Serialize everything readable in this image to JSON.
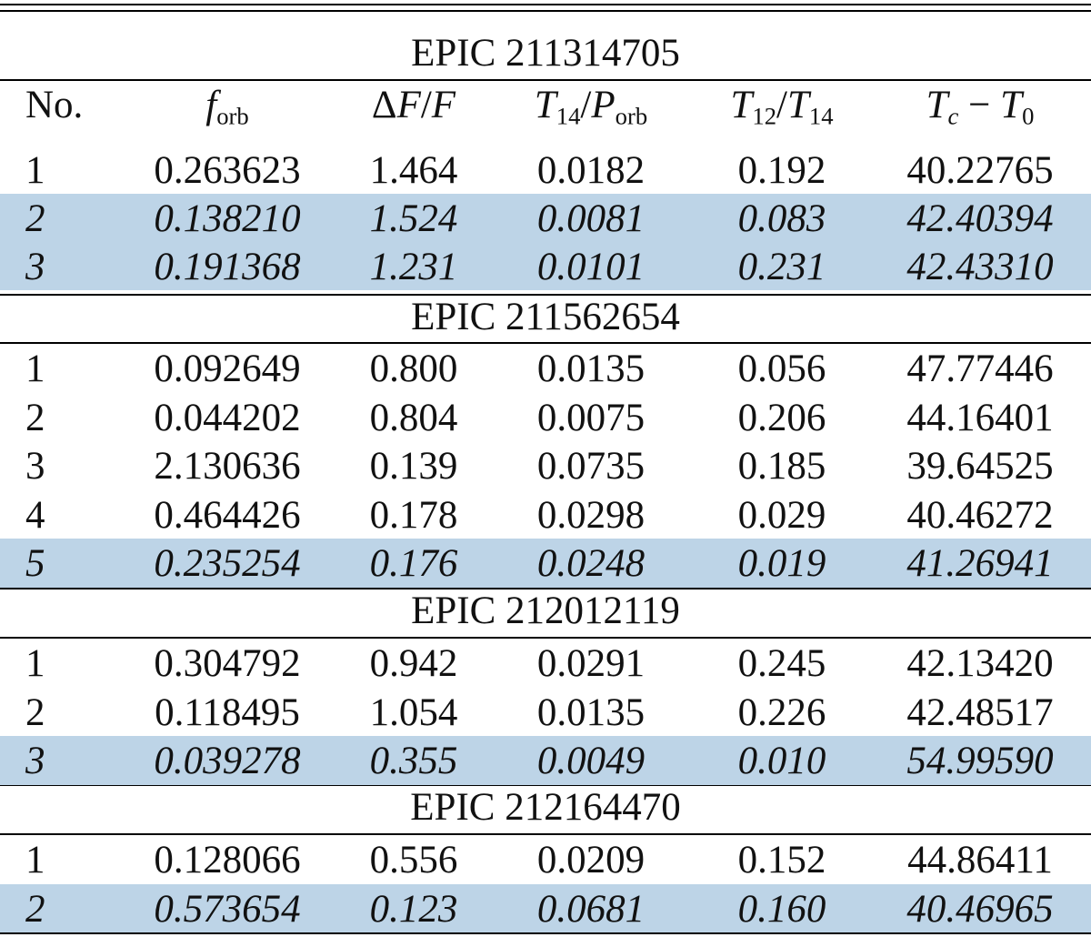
{
  "table": {
    "columns": [
      "No.",
      "f_orb",
      "ΔF/F",
      "T14/P_orb",
      "T12/T14",
      "Tc − T0"
    ],
    "highlight_color": "#bdd4e7",
    "groups": [
      {
        "title": "EPIC 211314705",
        "rows": [
          {
            "no": "1",
            "f_orb": "0.263623",
            "dF_F": "1.464",
            "T14_Porb": "0.0182",
            "T12_T14": "0.192",
            "Tc_T0": "40.22765",
            "highlighted": false
          },
          {
            "no": "2",
            "f_orb": "0.138210",
            "dF_F": "1.524",
            "T14_Porb": "0.0081",
            "T12_T14": "0.083",
            "Tc_T0": "42.40394",
            "highlighted": true
          },
          {
            "no": "3",
            "f_orb": "0.191368",
            "dF_F": "1.231",
            "T14_Porb": "0.0101",
            "T12_T14": "0.231",
            "Tc_T0": "42.43310",
            "highlighted": true
          }
        ]
      },
      {
        "title": "EPIC 211562654",
        "rows": [
          {
            "no": "1",
            "f_orb": "0.092649",
            "dF_F": "0.800",
            "T14_Porb": "0.0135",
            "T12_T14": "0.056",
            "Tc_T0": "47.77446",
            "highlighted": false
          },
          {
            "no": "2",
            "f_orb": "0.044202",
            "dF_F": "0.804",
            "T14_Porb": "0.0075",
            "T12_T14": "0.206",
            "Tc_T0": "44.16401",
            "highlighted": false
          },
          {
            "no": "3",
            "f_orb": "2.130636",
            "dF_F": "0.139",
            "T14_Porb": "0.0735",
            "T12_T14": "0.185",
            "Tc_T0": "39.64525",
            "highlighted": false
          },
          {
            "no": "4",
            "f_orb": "0.464426",
            "dF_F": "0.178",
            "T14_Porb": "0.0298",
            "T12_T14": "0.029",
            "Tc_T0": "40.46272",
            "highlighted": false
          },
          {
            "no": "5",
            "f_orb": "0.235254",
            "dF_F": "0.176",
            "T14_Porb": "0.0248",
            "T12_T14": "0.019",
            "Tc_T0": "41.26941",
            "highlighted": true
          }
        ]
      },
      {
        "title": "EPIC 212012119",
        "rows": [
          {
            "no": "1",
            "f_orb": "0.304792",
            "dF_F": "0.942",
            "T14_Porb": "0.0291",
            "T12_T14": "0.245",
            "Tc_T0": "42.13420",
            "highlighted": false
          },
          {
            "no": "2",
            "f_orb": "0.118495",
            "dF_F": "1.054",
            "T14_Porb": "0.0135",
            "T12_T14": "0.226",
            "Tc_T0": "42.48517",
            "highlighted": false
          },
          {
            "no": "3",
            "f_orb": "0.039278",
            "dF_F": "0.355",
            "T14_Porb": "0.0049",
            "T12_T14": "0.010",
            "Tc_T0": "54.99590",
            "highlighted": true
          }
        ]
      },
      {
        "title": "EPIC 212164470",
        "rows": [
          {
            "no": "1",
            "f_orb": "0.128066",
            "dF_F": "0.556",
            "T14_Porb": "0.0209",
            "T12_T14": "0.152",
            "Tc_T0": "44.86411",
            "highlighted": false
          },
          {
            "no": "2",
            "f_orb": "0.573654",
            "dF_F": "0.123",
            "T14_Porb": "0.0681",
            "T12_T14": "0.160",
            "Tc_T0": "40.46965",
            "highlighted": true
          }
        ]
      }
    ]
  }
}
